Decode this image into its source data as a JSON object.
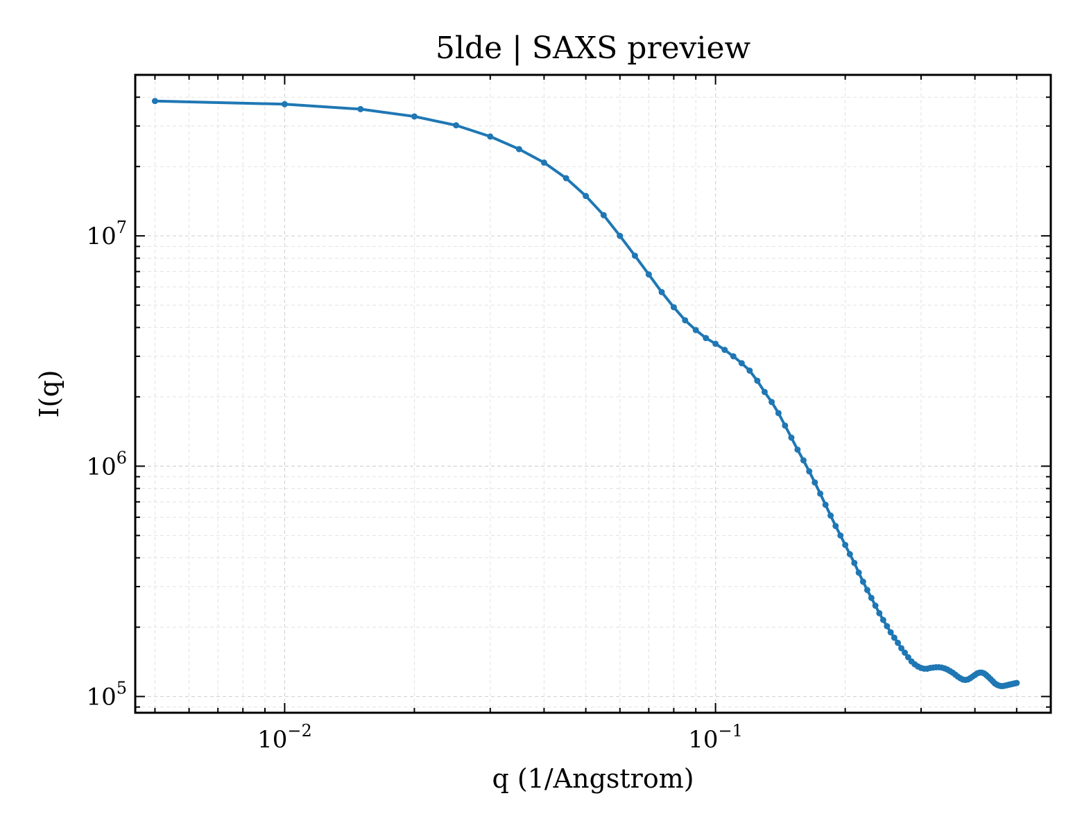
{
  "chart_data": {
    "type": "line",
    "title": "5lde | SAXS preview",
    "xlabel": "q (1/Angstrom)",
    "ylabel": "I(q)",
    "xscale": "log",
    "yscale": "log",
    "xlim": [
      0.0045,
      0.6
    ],
    "ylim": [
      85000,
      50000000
    ],
    "grid": true,
    "x_ticks": [
      {
        "base": "10",
        "exp": "−2",
        "value": 0.01
      },
      {
        "base": "10",
        "exp": "−1",
        "value": 0.1
      }
    ],
    "y_ticks": [
      {
        "base": "10",
        "exp": "5",
        "value": 100000
      },
      {
        "base": "10",
        "exp": "6",
        "value": 1000000
      },
      {
        "base": "10",
        "exp": "7",
        "value": 10000000
      }
    ],
    "series_color": "#1f77b4",
    "series": [
      {
        "points": [
          [
            0.005,
            38500000
          ],
          [
            0.01,
            37300000
          ],
          [
            0.015,
            35500000
          ],
          [
            0.02,
            33000000
          ],
          [
            0.025,
            30200000
          ],
          [
            0.03,
            27000000
          ],
          [
            0.035,
            23800000
          ],
          [
            0.04,
            20800000
          ],
          [
            0.045,
            17800000
          ],
          [
            0.05,
            14900000
          ],
          [
            0.055,
            12300000
          ],
          [
            0.06,
            10000000
          ],
          [
            0.065,
            8200000
          ],
          [
            0.07,
            6800000
          ],
          [
            0.075,
            5700000
          ],
          [
            0.08,
            4900000
          ],
          [
            0.085,
            4300000
          ],
          [
            0.09,
            3900000
          ],
          [
            0.095,
            3600000
          ],
          [
            0.1,
            3400000
          ],
          [
            0.105,
            3200000
          ],
          [
            0.11,
            3000000
          ],
          [
            0.115,
            2800000
          ],
          [
            0.12,
            2600000
          ],
          [
            0.125,
            2350000
          ],
          [
            0.13,
            2100000
          ],
          [
            0.135,
            1900000
          ],
          [
            0.14,
            1700000
          ],
          [
            0.145,
            1500000
          ],
          [
            0.15,
            1330000
          ],
          [
            0.155,
            1180000
          ],
          [
            0.16,
            1060000
          ],
          [
            0.165,
            950000
          ],
          [
            0.17,
            850000
          ],
          [
            0.175,
            760000
          ],
          [
            0.18,
            680000
          ],
          [
            0.185,
            610000
          ],
          [
            0.19,
            550000
          ],
          [
            0.195,
            500000
          ],
          [
            0.2,
            455000
          ],
          [
            0.205,
            415000
          ],
          [
            0.21,
            380000
          ],
          [
            0.215,
            345000
          ],
          [
            0.22,
            315000
          ],
          [
            0.225,
            290000
          ],
          [
            0.23,
            268000
          ],
          [
            0.235,
            248000
          ],
          [
            0.24,
            230000
          ],
          [
            0.245,
            215000
          ],
          [
            0.25,
            202000
          ],
          [
            0.255,
            190000
          ],
          [
            0.26,
            180000
          ],
          [
            0.265,
            171000
          ],
          [
            0.27,
            162000
          ],
          [
            0.275,
            155000
          ],
          [
            0.28,
            148000
          ],
          [
            0.285,
            142000
          ],
          [
            0.29,
            138000
          ],
          [
            0.295,
            135000
          ],
          [
            0.3,
            133000
          ],
          [
            0.305,
            132000
          ],
          [
            0.31,
            132000
          ],
          [
            0.315,
            133000
          ],
          [
            0.32,
            133500
          ],
          [
            0.325,
            134000
          ],
          [
            0.33,
            134000
          ],
          [
            0.335,
            133500
          ],
          [
            0.34,
            132500
          ],
          [
            0.345,
            131000
          ],
          [
            0.35,
            129000
          ],
          [
            0.355,
            127000
          ],
          [
            0.36,
            124500
          ],
          [
            0.365,
            122000
          ],
          [
            0.37,
            120000
          ],
          [
            0.375,
            118500
          ],
          [
            0.38,
            118000
          ],
          [
            0.385,
            118500
          ],
          [
            0.39,
            120000
          ],
          [
            0.395,
            122000
          ],
          [
            0.4,
            124000
          ],
          [
            0.405,
            126000
          ],
          [
            0.41,
            127000
          ],
          [
            0.415,
            127000
          ],
          [
            0.42,
            126000
          ],
          [
            0.425,
            124000
          ],
          [
            0.43,
            121500
          ],
          [
            0.435,
            119000
          ],
          [
            0.44,
            116500
          ],
          [
            0.445,
            114000
          ],
          [
            0.45,
            112500
          ],
          [
            0.455,
            111500
          ],
          [
            0.46,
            111000
          ],
          [
            0.465,
            111000
          ],
          [
            0.47,
            111500
          ],
          [
            0.475,
            112000
          ],
          [
            0.48,
            112500
          ],
          [
            0.485,
            113000
          ],
          [
            0.49,
            113500
          ],
          [
            0.495,
            114000
          ],
          [
            0.5,
            114500
          ]
        ]
      }
    ]
  }
}
